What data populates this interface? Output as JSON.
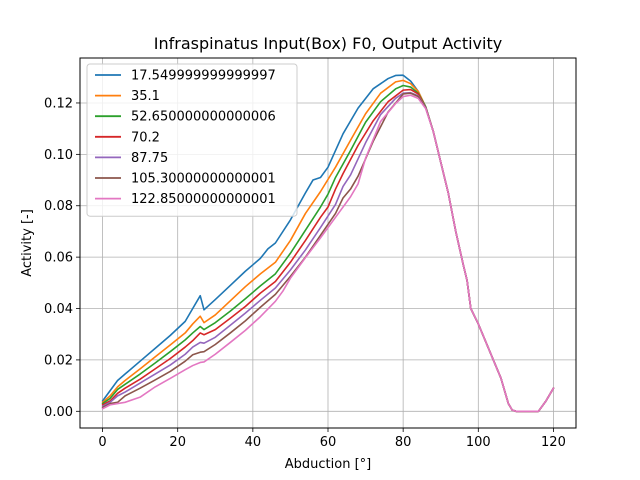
{
  "chart_data": {
    "type": "line",
    "title": "Infraspinatus Input(Box) F0, Output Activity",
    "xlabel": "Abduction [°]",
    "ylabel": "Activity [-]",
    "xlim": [
      -6,
      126
    ],
    "ylim": [
      -0.0065,
      0.1375
    ],
    "xticks": [
      0,
      20,
      40,
      60,
      80,
      100,
      120
    ],
    "yticks": [
      0.0,
      0.02,
      0.04,
      0.06,
      0.08,
      0.1,
      0.12
    ],
    "xtick_labels": [
      "0",
      "20",
      "40",
      "60",
      "80",
      "100",
      "120"
    ],
    "ytick_labels": [
      "0.00",
      "0.02",
      "0.04",
      "0.06",
      "0.08",
      "0.10",
      "0.12"
    ],
    "grid": true,
    "legend_position": "top-left",
    "series": [
      {
        "name": "17.549999999999997",
        "color": "#1f77b4",
        "x": [
          0,
          2,
          4,
          6,
          10,
          14,
          18,
          22,
          24,
          26,
          27,
          30,
          34,
          38,
          42,
          44,
          46,
          50,
          54,
          56,
          58,
          60,
          64,
          68,
          72,
          76,
          78,
          80,
          82,
          84,
          86
        ],
        "y": [
          0.004,
          0.008,
          0.012,
          0.0145,
          0.0195,
          0.0245,
          0.0295,
          0.035,
          0.04,
          0.045,
          0.0395,
          0.0435,
          0.049,
          0.0545,
          0.0595,
          0.0632,
          0.0655,
          0.0745,
          0.085,
          0.09,
          0.091,
          0.095,
          0.108,
          0.118,
          0.1255,
          0.1295,
          0.1307,
          0.1308,
          0.1285,
          0.1245,
          0.1185
        ]
      },
      {
        "name": "35.1",
        "color": "#ff7f0e",
        "x": [
          0,
          2,
          4,
          6,
          10,
          14,
          18,
          22,
          24,
          26,
          27,
          30,
          34,
          38,
          42,
          46,
          50,
          54,
          58,
          62,
          66,
          70,
          74,
          78,
          80,
          82,
          84,
          86
        ],
        "y": [
          0.0035,
          0.006,
          0.0095,
          0.012,
          0.0165,
          0.0212,
          0.0258,
          0.0305,
          0.034,
          0.037,
          0.0345,
          0.0375,
          0.043,
          0.0485,
          0.0535,
          0.058,
          0.0665,
          0.077,
          0.0855,
          0.095,
          0.1055,
          0.1158,
          0.1238,
          0.1282,
          0.1288,
          0.1275,
          0.1245,
          0.1185
        ]
      },
      {
        "name": "52.650000000000006",
        "color": "#2ca02c",
        "x": [
          0,
          2,
          4,
          6,
          10,
          14,
          18,
          22,
          24,
          26,
          27,
          30,
          34,
          38,
          42,
          46,
          50,
          54,
          58,
          60,
          62,
          66,
          70,
          74,
          78,
          80,
          82,
          84,
          86
        ],
        "y": [
          0.003,
          0.005,
          0.0085,
          0.0105,
          0.0145,
          0.0188,
          0.0232,
          0.0278,
          0.0305,
          0.033,
          0.0318,
          0.0345,
          0.039,
          0.0438,
          0.0488,
          0.0535,
          0.0615,
          0.0705,
          0.0795,
          0.0845,
          0.091,
          0.1015,
          0.1125,
          0.1205,
          0.1255,
          0.1268,
          0.1262,
          0.1238,
          0.1185
        ]
      },
      {
        "name": "70.2",
        "color": "#d62728",
        "x": [
          0,
          2,
          4,
          6,
          10,
          14,
          18,
          22,
          24,
          26,
          27,
          30,
          34,
          38,
          42,
          46,
          50,
          54,
          58,
          60,
          62,
          64,
          68,
          72,
          76,
          80,
          82,
          84,
          86
        ],
        "y": [
          0.0025,
          0.004,
          0.007,
          0.009,
          0.0125,
          0.0165,
          0.0205,
          0.025,
          0.0275,
          0.0305,
          0.0298,
          0.0318,
          0.0362,
          0.0408,
          0.046,
          0.0505,
          0.058,
          0.0665,
          0.0755,
          0.0795,
          0.0865,
          0.0925,
          0.1035,
          0.113,
          0.1205,
          0.125,
          0.1252,
          0.1235,
          0.1182
        ]
      },
      {
        "name": "87.75",
        "color": "#9467bd",
        "x": [
          0,
          2,
          4,
          6,
          10,
          14,
          18,
          22,
          24,
          26,
          27,
          30,
          34,
          38,
          42,
          46,
          50,
          54,
          58,
          62,
          64,
          66,
          70,
          74,
          78,
          80,
          82,
          84,
          86
        ],
        "y": [
          0.002,
          0.0035,
          0.006,
          0.0075,
          0.011,
          0.0145,
          0.018,
          0.0222,
          0.025,
          0.0268,
          0.0265,
          0.0288,
          0.0335,
          0.0382,
          0.0432,
          0.048,
          0.055,
          0.0628,
          0.0715,
          0.0805,
          0.0875,
          0.092,
          0.1045,
          0.1155,
          0.1218,
          0.1238,
          0.124,
          0.1228,
          0.1182
        ]
      },
      {
        "name": "105.30000000000001",
        "color": "#8c564b",
        "x": [
          0,
          2,
          4,
          6,
          10,
          14,
          18,
          22,
          24,
          26,
          27,
          30,
          34,
          38,
          42,
          46,
          50,
          54,
          58,
          62,
          64,
          66,
          68,
          72,
          76,
          80,
          82,
          84,
          86
        ],
        "y": [
          0.0015,
          0.003,
          0.0035,
          0.006,
          0.009,
          0.0122,
          0.0155,
          0.0195,
          0.022,
          0.023,
          0.0232,
          0.026,
          0.0305,
          0.0352,
          0.0405,
          0.0455,
          0.0525,
          0.06,
          0.0685,
          0.077,
          0.083,
          0.0865,
          0.0915,
          0.105,
          0.1165,
          0.1235,
          0.1238,
          0.1225,
          0.118
        ]
      },
      {
        "name": "122.85000000000001",
        "color": "#e377c2",
        "x": [
          0,
          2,
          4,
          6,
          10,
          14,
          18,
          22,
          24,
          26,
          27,
          30,
          34,
          38,
          42,
          46,
          48,
          50,
          54,
          58,
          62,
          66,
          68,
          70,
          74,
          78,
          80,
          82,
          84,
          86
        ],
        "y": [
          0.001,
          0.0025,
          0.003,
          0.0035,
          0.0055,
          0.0095,
          0.0128,
          0.0162,
          0.0178,
          0.019,
          0.0192,
          0.0222,
          0.0268,
          0.0315,
          0.0368,
          0.0428,
          0.0468,
          0.0518,
          0.0598,
          0.0675,
          0.0755,
          0.0835,
          0.0885,
          0.0985,
          0.1128,
          0.1198,
          0.1225,
          0.123,
          0.1218,
          0.1178
        ]
      }
    ],
    "shared_tail": {
      "x": [
        86,
        88,
        90,
        92,
        94,
        96,
        97,
        98,
        100,
        102,
        104,
        106,
        108,
        109,
        110,
        112,
        114,
        116,
        117,
        118,
        120
      ],
      "y": [
        0.118,
        0.109,
        0.097,
        0.085,
        0.07,
        0.057,
        0.051,
        0.04,
        0.034,
        0.027,
        0.02,
        0.013,
        0.003,
        0.0005,
        0.0,
        0.0,
        0.0,
        0.0,
        0.002,
        0.004,
        0.009
      ]
    }
  }
}
